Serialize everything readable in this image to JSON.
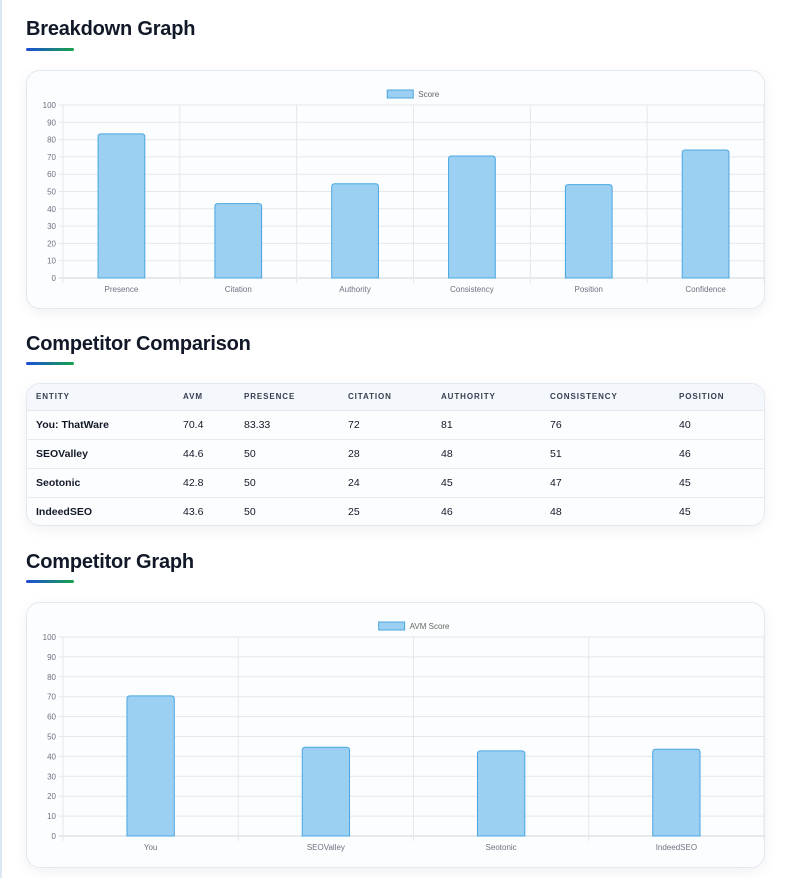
{
  "sections": {
    "breakdown_title": "Breakdown Graph",
    "comparison_title": "Competitor Comparison",
    "competitor_graph_title": "Competitor Graph"
  },
  "colors": {
    "bar_fill": "#9bd0f3",
    "bar_stroke": "#4aa6e0",
    "grid": "#e5e7eb",
    "underline_start": "#1d4ed8",
    "underline_end": "#16a34a"
  },
  "table": {
    "headers": [
      "ENTITY",
      "AVM",
      "PRESENCE",
      "CITATION",
      "AUTHORITY",
      "CONSISTENCY",
      "POSITION"
    ],
    "rows": [
      [
        "You: ThatWare",
        "70.4",
        "83.33",
        "72",
        "81",
        "76",
        "40"
      ],
      [
        "SEOValley",
        "44.6",
        "50",
        "28",
        "48",
        "51",
        "46"
      ],
      [
        "Seotonic",
        "42.8",
        "50",
        "24",
        "45",
        "47",
        "45"
      ],
      [
        "IndeedSEO",
        "43.6",
        "50",
        "25",
        "46",
        "48",
        "45"
      ]
    ]
  },
  "chart_data": [
    {
      "type": "bar",
      "title": "",
      "xlabel": "",
      "ylabel": "",
      "categories": [
        "Presence",
        "Citation",
        "Authority",
        "Consistency",
        "Position",
        "Confidence"
      ],
      "series": [
        {
          "name": "Score",
          "values": [
            83.33,
            43,
            54.5,
            70.5,
            54,
            74
          ]
        }
      ],
      "ylim": [
        0,
        100
      ],
      "yticks": [
        0,
        10,
        20,
        30,
        40,
        50,
        60,
        70,
        80,
        90,
        100
      ],
      "grid": true,
      "legend": "top-center"
    },
    {
      "type": "bar",
      "title": "",
      "xlabel": "",
      "ylabel": "",
      "categories": [
        "You",
        "SEOValley",
        "Seotonic",
        "IndeedSEO"
      ],
      "series": [
        {
          "name": "AVM Score",
          "values": [
            70.4,
            44.6,
            42.8,
            43.6
          ]
        }
      ],
      "ylim": [
        0,
        100
      ],
      "yticks": [
        0,
        10,
        20,
        30,
        40,
        50,
        60,
        70,
        80,
        90,
        100
      ],
      "grid": true,
      "legend": "top-center"
    }
  ]
}
